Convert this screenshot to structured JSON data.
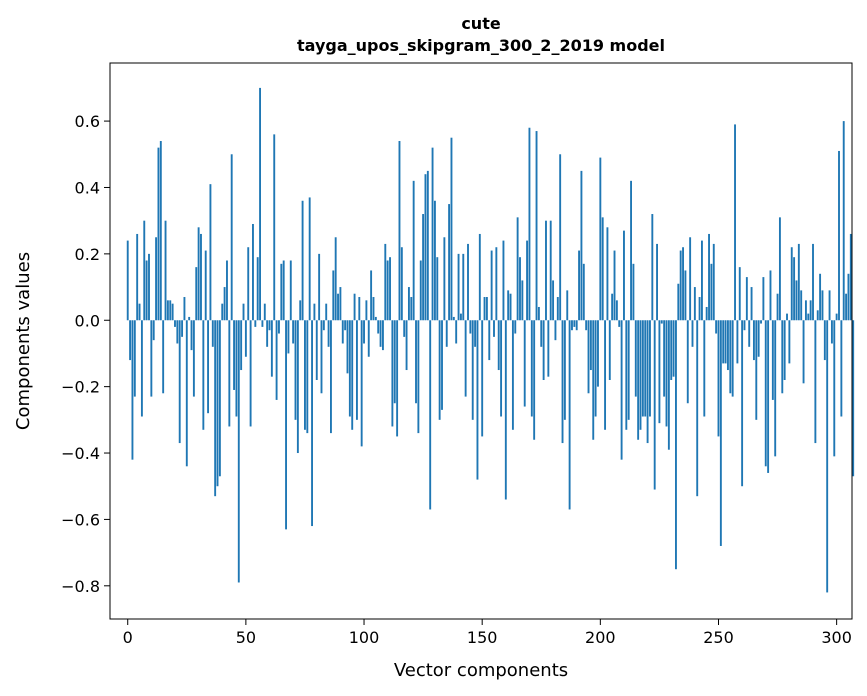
{
  "chart_data": {
    "type": "bar",
    "title": "cute",
    "subtitle": "tayga_upos_skipgram_300_2_2019 model",
    "xlabel": "Vector components",
    "ylabel": "Components values",
    "xlim": [
      -7.5,
      306.5
    ],
    "ylim": [
      -0.9,
      0.775
    ],
    "xticks": [
      0,
      50,
      100,
      150,
      200,
      250,
      300
    ],
    "xtick_labels": [
      "0",
      "50",
      "100",
      "150",
      "200",
      "250",
      "300"
    ],
    "yticks": [
      -0.8,
      -0.6,
      -0.4,
      -0.2,
      0.0,
      0.2,
      0.4,
      0.6
    ],
    "ytick_labels": [
      "−0.8",
      "−0.6",
      "−0.4",
      "−0.2",
      "0.0",
      "0.2",
      "0.4",
      "0.6"
    ],
    "bar_color": "#1f77b4",
    "values": [
      0.24,
      -0.12,
      -0.42,
      -0.23,
      0.26,
      0.05,
      -0.29,
      0.3,
      0.18,
      0.2,
      -0.23,
      -0.06,
      0.25,
      0.52,
      0.54,
      -0.22,
      0.3,
      0.06,
      0.06,
      0.05,
      -0.02,
      -0.07,
      -0.37,
      -0.05,
      0.07,
      -0.44,
      0.01,
      -0.09,
      -0.23,
      0.16,
      0.28,
      0.26,
      -0.33,
      0.21,
      -0.28,
      0.41,
      -0.08,
      -0.53,
      -0.5,
      -0.47,
      0.05,
      0.1,
      0.18,
      -0.32,
      0.5,
      -0.21,
      -0.29,
      -0.79,
      -0.15,
      0.05,
      -0.11,
      0.22,
      -0.32,
      0.29,
      -0.02,
      0.19,
      0.7,
      -0.02,
      0.05,
      -0.08,
      -0.03,
      -0.17,
      0.56,
      -0.24,
      -0.04,
      0.17,
      0.18,
      -0.63,
      -0.1,
      0.18,
      -0.07,
      -0.3,
      -0.4,
      0.06,
      0.36,
      -0.33,
      -0.34,
      0.37,
      -0.62,
      0.05,
      -0.18,
      0.2,
      -0.22,
      -0.03,
      0.05,
      -0.08,
      -0.34,
      0.15,
      0.25,
      0.08,
      0.1,
      -0.07,
      -0.03,
      -0.16,
      -0.29,
      -0.33,
      0.08,
      -0.3,
      0.07,
      -0.38,
      -0.07,
      0.06,
      -0.11,
      0.15,
      0.07,
      0.01,
      -0.04,
      -0.08,
      -0.09,
      0.23,
      0.18,
      0.19,
      -0.32,
      -0.25,
      -0.35,
      0.54,
      0.22,
      -0.05,
      -0.15,
      0.1,
      0.07,
      0.42,
      -0.25,
      -0.34,
      0.18,
      0.32,
      0.44,
      0.45,
      -0.57,
      0.52,
      0.36,
      0.19,
      -0.3,
      -0.27,
      0.25,
      -0.08,
      0.35,
      0.55,
      0.01,
      -0.07,
      0.2,
      0.02,
      0.2,
      -0.23,
      0.23,
      -0.04,
      -0.3,
      -0.08,
      -0.48,
      0.26,
      -0.35,
      0.07,
      0.07,
      -0.12,
      0.21,
      -0.05,
      0.22,
      -0.15,
      -0.29,
      0.24,
      -0.54,
      0.09,
      0.08,
      -0.33,
      -0.04,
      0.31,
      0.19,
      0.12,
      -0.26,
      0.24,
      0.58,
      -0.29,
      -0.36,
      0.57,
      0.04,
      -0.08,
      -0.18,
      0.3,
      -0.17,
      0.3,
      0.12,
      -0.06,
      0.07,
      0.5,
      -0.37,
      -0.3,
      0.09,
      -0.57,
      -0.03,
      -0.02,
      -0.03,
      0.21,
      0.45,
      0.17,
      -0.03,
      -0.22,
      -0.15,
      -0.36,
      -0.29,
      -0.2,
      0.49,
      0.31,
      -0.33,
      0.28,
      -0.18,
      0.08,
      0.21,
      0.06,
      -0.02,
      -0.42,
      0.27,
      -0.33,
      -0.3,
      0.42,
      0.17,
      -0.23,
      -0.36,
      -0.33,
      -0.29,
      -0.29,
      -0.37,
      -0.29,
      0.32,
      -0.51,
      0.23,
      -0.31,
      -0.01,
      -0.23,
      -0.32,
      -0.39,
      -0.18,
      -0.17,
      -0.75,
      0.11,
      0.21,
      0.22,
      0.15,
      -0.25,
      0.25,
      -0.08,
      0.1,
      -0.53,
      0.07,
      0.24,
      -0.29,
      0.04,
      0.26,
      0.17,
      0.23,
      -0.04,
      -0.35,
      -0.68,
      -0.13,
      -0.13,
      -0.15,
      -0.22,
      -0.23,
      0.59,
      -0.13,
      0.16,
      -0.5,
      -0.03,
      0.13,
      -0.08,
      0.1,
      -0.12,
      -0.3,
      -0.11,
      -0.01,
      0.13,
      -0.44,
      -0.46,
      0.15,
      -0.24,
      -0.41,
      0.08,
      0.31,
      -0.22,
      -0.18,
      0.02,
      -0.13,
      0.22,
      0.19,
      0.12,
      0.23,
      0.09,
      -0.19,
      0.06,
      0.02,
      0.06,
      0.23,
      -0.37,
      0.03,
      0.14,
      0.09,
      -0.12,
      -0.82,
      0.09,
      -0.07,
      -0.41,
      0.02,
      0.51,
      -0.29,
      0.6,
      0.08,
      0.14,
      0.26,
      -0.47
    ]
  }
}
